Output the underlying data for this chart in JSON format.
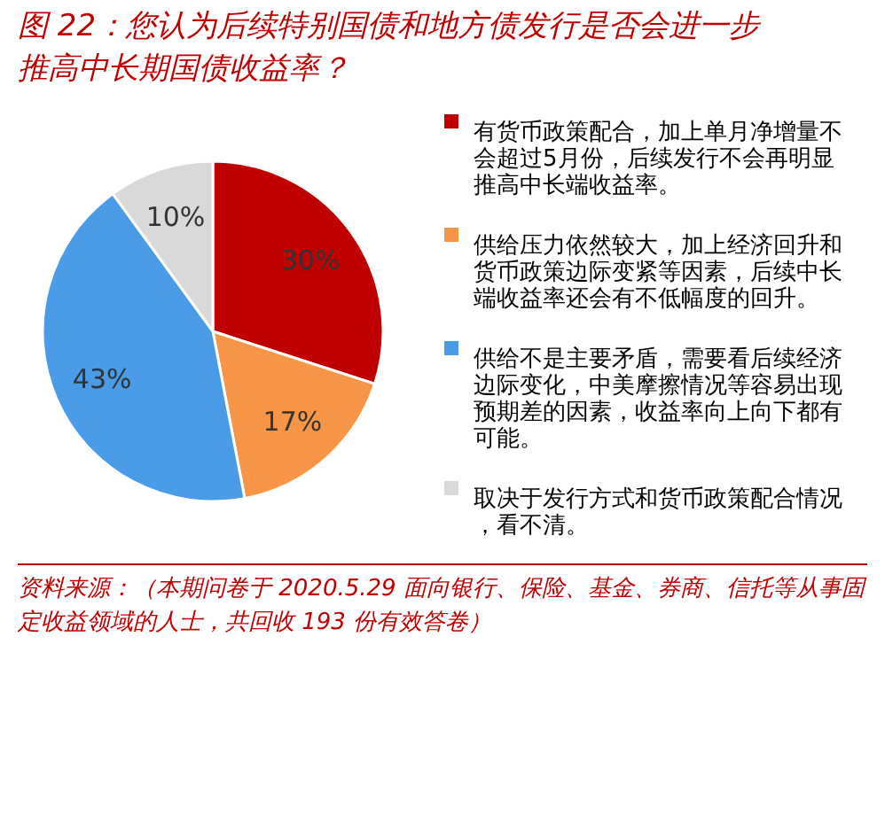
{
  "chart_data": {
    "type": "pie",
    "title": "图 22：您认为后续特别国债和地方债发行是否会进一步推高中长期国债收益率？",
    "categories": [
      "有货币政策配合，加上单月净增量不会超过5月份，后续发行不会再明显推高中长端收益率。",
      "供给压力依然较大，加上经济回升和货币政策边际变紧等因素，后续中长端收益率还会有不低幅度的回升。",
      "供给不是主要矛盾，需要看后续经济边际变化，中美摩擦情况等容易出现预期差的因素，收益率向上向下都有可能。",
      "取决于发行方式和货币政策配合情况，看不清。"
    ],
    "values": [
      30,
      17,
      43,
      10
    ],
    "colors": [
      "#c00000",
      "#f79646",
      "#4a9be8",
      "#d9d9d9"
    ],
    "value_labels": [
      "30%",
      "17%",
      "43%",
      "10%"
    ],
    "legend": "right",
    "annotations": [
      "资料来源：（本期问卷于 2020.5.29 面向银行、保险、基金、券商、信托等从事固定收益领域的人士，共回收 193 份有效答卷）"
    ]
  }
}
